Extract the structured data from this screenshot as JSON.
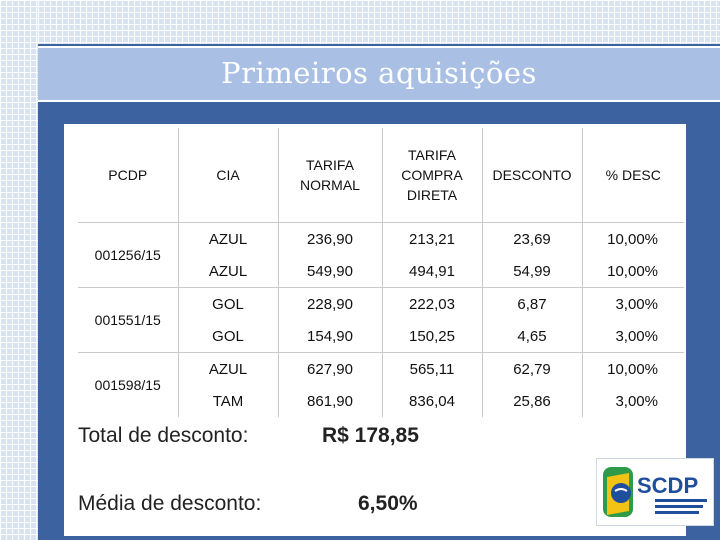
{
  "slide": {
    "title": "Primeiros aquisições"
  },
  "table": {
    "headers": {
      "pcdp": "PCDP",
      "cia": "CIA",
      "tarifa_normal": "TARIFA NORMAL",
      "tarifa_compra_direta": "TARIFA COMPRA DIRETA",
      "desconto": "DESCONTO",
      "pct_desc": "% DESC"
    },
    "groups": [
      {
        "pcdp": "001256/15",
        "rows": [
          {
            "cia": "AZUL",
            "normal": "236,90",
            "direta": "213,21",
            "desconto": "23,69",
            "pct": "10,00%"
          },
          {
            "cia": "AZUL",
            "normal": "549,90",
            "direta": "494,91",
            "desconto": "54,99",
            "pct": "10,00%"
          }
        ]
      },
      {
        "pcdp": "001551/15",
        "rows": [
          {
            "cia": "GOL",
            "normal": "228,90",
            "direta": "222,03",
            "desconto": "6,87",
            "pct": "3,00%"
          },
          {
            "cia": "GOL",
            "normal": "154,90",
            "direta": "150,25",
            "desconto": "4,65",
            "pct": "3,00%"
          }
        ]
      },
      {
        "pcdp": "001598/15",
        "rows": [
          {
            "cia": "AZUL",
            "normal": "627,90",
            "direta": "565,11",
            "desconto": "62,79",
            "pct": "10,00%"
          },
          {
            "cia": "TAM",
            "normal": "861,90",
            "direta": "836,04",
            "desconto": "25,86",
            "pct": "3,00%"
          }
        ]
      }
    ]
  },
  "summary": {
    "total_label": "Total de desconto:",
    "total_value": "R$ 178,85",
    "avg_label": "Média de desconto:",
    "avg_value": "6,50%"
  },
  "logo": {
    "text": "SCDP",
    "icon": "scdp-logo-icon",
    "colors": {
      "blue": "#1f4e9c",
      "green": "#2f9a48",
      "yellow": "#f2c314"
    }
  }
}
